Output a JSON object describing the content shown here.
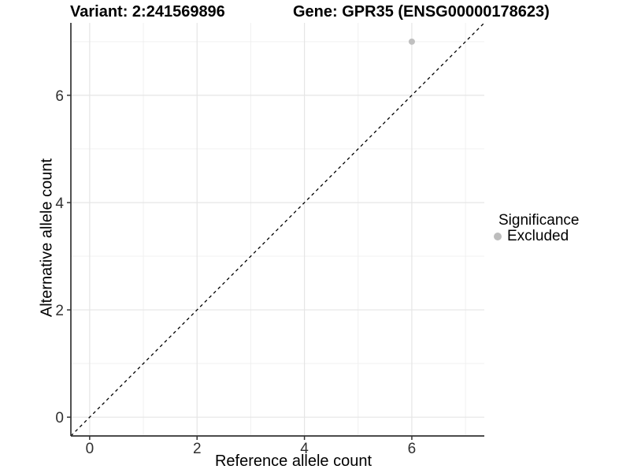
{
  "chart_data": {
    "type": "scatter",
    "title_left": "Variant: 2:241569896",
    "title_right": "Gene: GPR35 (ENSG00000178623)",
    "xlabel": "Reference allele count",
    "ylabel": "Alternative allele count",
    "xlim": [
      -0.35,
      7.35
    ],
    "ylim": [
      -0.35,
      7.35
    ],
    "xticks": [
      0,
      2,
      4,
      6
    ],
    "yticks": [
      0,
      2,
      4,
      6
    ],
    "xticks_minor": [
      1,
      3,
      5,
      7
    ],
    "yticks_minor": [
      1,
      3,
      5,
      7
    ],
    "grid": true,
    "points": [
      {
        "x": 6,
        "y": 7,
        "significance": "Excluded"
      }
    ],
    "point_radius": 4,
    "identity_line": {
      "style": "dashed",
      "from": [
        -0.35,
        -0.35
      ],
      "to": [
        7.35,
        7.35
      ],
      "color": "#000000"
    },
    "legend": {
      "title": "Significance",
      "position": "right",
      "items": [
        {
          "label": "Excluded",
          "color": "#bdbdbd"
        }
      ]
    },
    "colors": {
      "point": "#c0c0c0",
      "grid_major": "#e5e5e5",
      "grid_minor": "#f0f0f0",
      "axis_line": "#333333",
      "tick_label": "#303030"
    }
  }
}
